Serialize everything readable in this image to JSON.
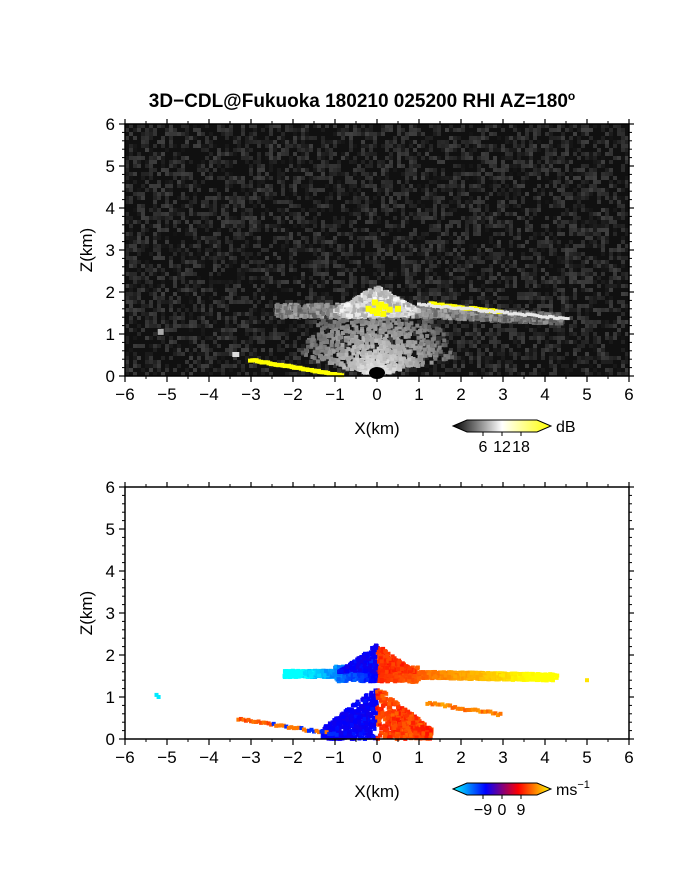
{
  "title": "3D−CDL@Fukuoka 180210 025200 RHI AZ=180",
  "title_suffix": "o",
  "chart_data": [
    {
      "type": "heatmap",
      "name": "reflectivity",
      "xlabel": "X(km)",
      "ylabel": "Z(km)",
      "xlim": [
        -6,
        6
      ],
      "ylim": [
        0,
        6
      ],
      "xticks": [
        "−6",
        "−5",
        "−4",
        "−3",
        "−2",
        "−1",
        "0",
        "1",
        "2",
        "3",
        "4",
        "5",
        "6"
      ],
      "yticks": [
        "0",
        "1",
        "2",
        "3",
        "4",
        "5",
        "6"
      ],
      "colorbar": {
        "unit": "dB",
        "ticks": [
          "6",
          "12",
          "18"
        ],
        "colors": [
          "#000000",
          "#ffffff",
          "#ffff00"
        ]
      },
      "background_color": "#101010"
    },
    {
      "type": "heatmap",
      "name": "doppler-velocity",
      "xlabel": "X(km)",
      "ylabel": "Z(km)",
      "xlim": [
        -6,
        6
      ],
      "ylim": [
        0,
        6
      ],
      "xticks": [
        "−6",
        "−5",
        "−4",
        "−3",
        "−2",
        "−1",
        "0",
        "1",
        "2",
        "3",
        "4",
        "5",
        "6"
      ],
      "yticks": [
        "0",
        "1",
        "2",
        "3",
        "4",
        "5",
        "6"
      ],
      "colorbar": {
        "unit": "ms",
        "unit_exp": "−1",
        "ticks": [
          "−9",
          "0",
          "9"
        ],
        "colors": [
          "#00ffff",
          "#0000ff",
          "#ff0000",
          "#ffff00"
        ]
      },
      "background_color": "#ffffff"
    }
  ]
}
